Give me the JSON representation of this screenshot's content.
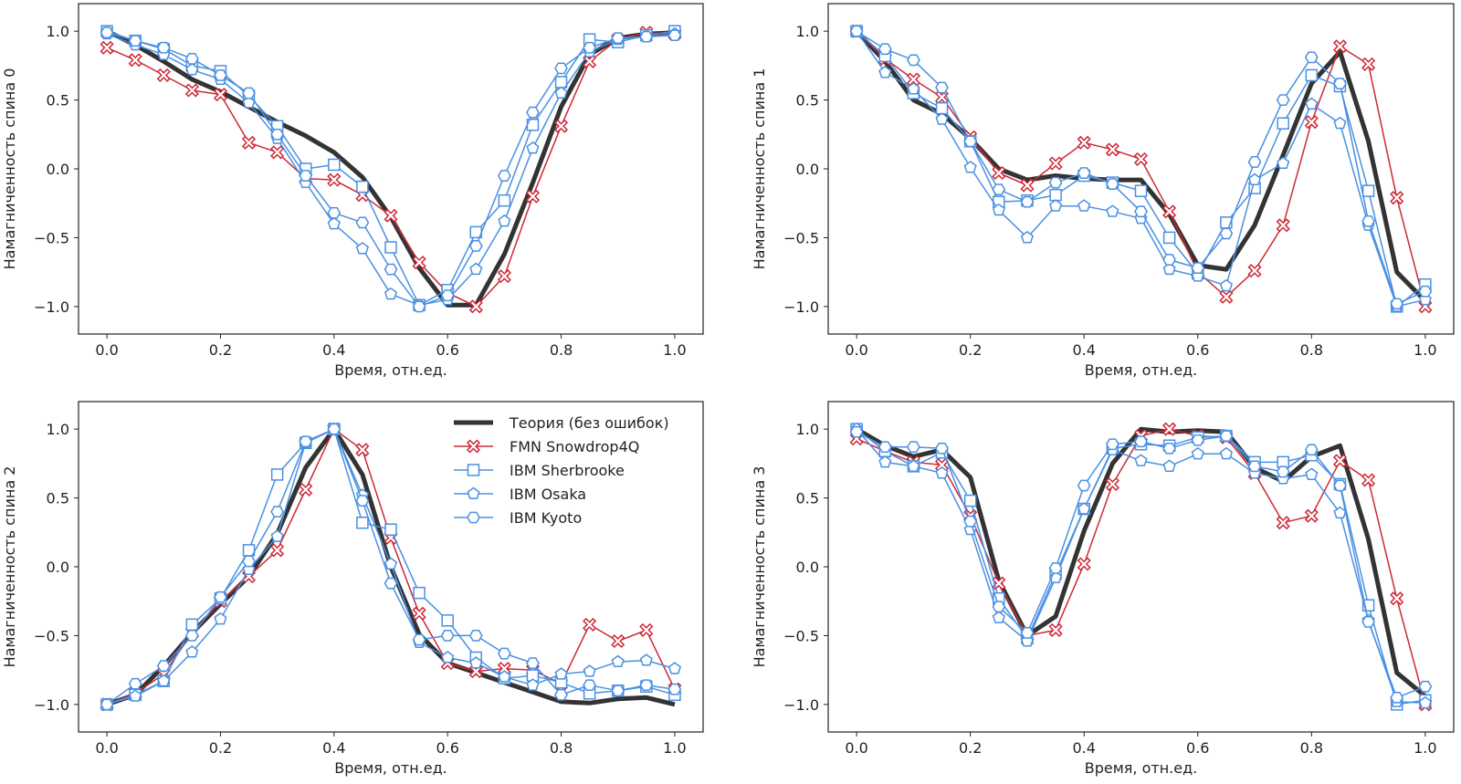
{
  "colors": {
    "theory": "#333333",
    "fmn": "#cc2936",
    "ibm": "#4a90e2"
  },
  "legend": {
    "entries": [
      "Теория (без ошибок)",
      "FMN Snowdrop4Q",
      "IBM Sherbrooke",
      "IBM Osaka",
      "IBM Kyoto"
    ]
  },
  "chart_data": [
    {
      "type": "line",
      "xlabel": "Время, отн.ед.",
      "ylabel": "Намагниченность спина 0",
      "xlim": [
        -0.05,
        1.05
      ],
      "ylim": [
        -1.2,
        1.2
      ],
      "xticks": [
        "0.0",
        "0.2",
        "0.4",
        "0.6",
        "0.8",
        "1.0"
      ],
      "yticks": [
        "−1.0",
        "−0.5",
        "0.0",
        "0.5",
        "1.0"
      ],
      "grid": false,
      "x": [
        0.0,
        0.05,
        0.1,
        0.15,
        0.2,
        0.25,
        0.3,
        0.35,
        0.4,
        0.45,
        0.5,
        0.55,
        0.6,
        0.65,
        0.7,
        0.75,
        0.8,
        0.85,
        0.9,
        0.95,
        1.0
      ],
      "series": [
        {
          "name": "Теория (без ошибок)",
          "values": [
            1.0,
            0.9,
            0.78,
            0.65,
            0.56,
            0.45,
            0.34,
            0.24,
            0.12,
            -0.06,
            -0.35,
            -0.72,
            -0.99,
            -0.99,
            -0.62,
            -0.1,
            0.45,
            0.83,
            0.95,
            0.98,
            0.99
          ]
        },
        {
          "name": "FMN Snowdrop4Q",
          "values": [
            0.88,
            0.79,
            0.68,
            0.57,
            0.54,
            0.19,
            0.12,
            -0.07,
            -0.08,
            -0.19,
            -0.34,
            -0.68,
            -0.9,
            -1.0,
            -0.78,
            -0.2,
            0.31,
            0.78,
            0.94,
            0.99,
            0.98
          ]
        },
        {
          "name": "IBM Sherbrooke",
          "values": [
            1.0,
            0.93,
            0.87,
            0.75,
            0.71,
            0.53,
            0.31,
            0.0,
            0.03,
            -0.13,
            -0.57,
            -0.99,
            -0.88,
            -0.46,
            -0.23,
            0.32,
            0.63,
            0.94,
            0.92,
            0.97,
            1.0
          ]
        },
        {
          "name": "IBM Osaka",
          "values": [
            0.98,
            0.9,
            0.83,
            0.72,
            0.65,
            0.48,
            0.22,
            -0.1,
            -0.4,
            -0.58,
            -0.91,
            -0.99,
            -0.95,
            -0.73,
            -0.38,
            0.15,
            0.55,
            0.85,
            0.94,
            0.96,
            0.98
          ]
        },
        {
          "name": "IBM Kyoto",
          "values": [
            0.99,
            0.93,
            0.88,
            0.8,
            0.68,
            0.55,
            0.25,
            -0.05,
            -0.32,
            -0.39,
            -0.73,
            -1.0,
            -0.92,
            -0.56,
            -0.05,
            0.41,
            0.73,
            0.88,
            0.95,
            0.96,
            0.97
          ]
        }
      ]
    },
    {
      "type": "line",
      "xlabel": "Время, отн.ед.",
      "ylabel": "Намагниченность спина 1",
      "xlim": [
        -0.05,
        1.05
      ],
      "ylim": [
        -1.2,
        1.2
      ],
      "xticks": [
        "0.0",
        "0.2",
        "0.4",
        "0.6",
        "0.8",
        "1.0"
      ],
      "yticks": [
        "−1.0",
        "−0.5",
        "0.0",
        "0.5",
        "1.0"
      ],
      "grid": false,
      "x": [
        0.0,
        0.05,
        0.1,
        0.15,
        0.2,
        0.25,
        0.3,
        0.35,
        0.4,
        0.45,
        0.5,
        0.55,
        0.6,
        0.65,
        0.7,
        0.75,
        0.8,
        0.85,
        0.9,
        0.95,
        1.0
      ],
      "series": [
        {
          "name": "Теория (без ошибок)",
          "values": [
            1.0,
            0.78,
            0.5,
            0.4,
            0.22,
            0.0,
            -0.08,
            -0.05,
            -0.07,
            -0.08,
            -0.08,
            -0.33,
            -0.7,
            -0.73,
            -0.41,
            0.1,
            0.62,
            0.85,
            0.2,
            -0.75,
            -0.96
          ]
        },
        {
          "name": "FMN Snowdrop4Q",
          "values": [
            1.0,
            0.8,
            0.65,
            0.52,
            0.23,
            -0.03,
            -0.12,
            0.04,
            0.19,
            0.14,
            0.07,
            -0.31,
            -0.75,
            -0.93,
            -0.74,
            -0.41,
            0.34,
            0.89,
            0.76,
            -0.21,
            -1.0
          ]
        },
        {
          "name": "IBM Sherbrooke",
          "values": [
            1.0,
            0.82,
            0.55,
            0.44,
            0.2,
            -0.24,
            -0.23,
            -0.19,
            -0.05,
            -0.1,
            -0.16,
            -0.5,
            -0.76,
            -0.39,
            -0.14,
            0.33,
            0.68,
            0.6,
            -0.16,
            -1.0,
            -0.84
          ]
        },
        {
          "name": "IBM Osaka",
          "values": [
            1.0,
            0.7,
            0.58,
            0.36,
            0.01,
            -0.3,
            -0.5,
            -0.27,
            -0.27,
            -0.31,
            -0.36,
            -0.73,
            -0.78,
            -0.85,
            -0.08,
            0.04,
            0.47,
            0.33,
            -0.41,
            -1.0,
            -0.95
          ]
        },
        {
          "name": "IBM Kyoto",
          "values": [
            1.0,
            0.87,
            0.79,
            0.59,
            0.2,
            -0.15,
            -0.24,
            -0.1,
            -0.03,
            -0.11,
            -0.31,
            -0.66,
            -0.72,
            -0.47,
            0.05,
            0.5,
            0.81,
            0.62,
            -0.38,
            -0.98,
            -0.89
          ]
        }
      ]
    },
    {
      "type": "line",
      "xlabel": "Время, отн.ед.",
      "ylabel": "Намагниченность спина 2",
      "xlim": [
        -0.05,
        1.05
      ],
      "ylim": [
        -1.2,
        1.2
      ],
      "xticks": [
        "0.0",
        "0.2",
        "0.4",
        "0.6",
        "0.8",
        "1.0"
      ],
      "yticks": [
        "−1.0",
        "−0.5",
        "0.0",
        "0.5",
        "1.0"
      ],
      "grid": false,
      "legend": "top-right",
      "x": [
        0.0,
        0.05,
        0.1,
        0.15,
        0.2,
        0.25,
        0.3,
        0.35,
        0.4,
        0.45,
        0.5,
        0.55,
        0.6,
        0.65,
        0.7,
        0.75,
        0.8,
        0.85,
        0.9,
        0.95,
        1.0
      ],
      "series": [
        {
          "name": "Теория (без ошибок)",
          "values": [
            -1.0,
            -0.93,
            -0.72,
            -0.48,
            -0.27,
            -0.07,
            0.24,
            0.72,
            1.0,
            0.67,
            0.0,
            -0.49,
            -0.7,
            -0.77,
            -0.84,
            -0.91,
            -0.98,
            -0.99,
            -0.96,
            -0.95,
            -1.0
          ]
        },
        {
          "name": "FMN Snowdrop4Q",
          "values": [
            -1.0,
            -0.92,
            -0.78,
            -0.48,
            -0.25,
            -0.07,
            0.12,
            0.56,
            1.0,
            0.85,
            0.21,
            -0.34,
            -0.7,
            -0.76,
            -0.74,
            -0.75,
            -0.85,
            -0.42,
            -0.54,
            -0.46,
            -0.89
          ]
        },
        {
          "name": "IBM Sherbrooke",
          "values": [
            -1.0,
            -0.93,
            -0.83,
            -0.42,
            -0.23,
            0.12,
            0.67,
            0.9,
            1.0,
            0.32,
            0.27,
            -0.19,
            -0.39,
            -0.66,
            -0.81,
            -0.79,
            -0.84,
            -0.92,
            -0.9,
            -0.87,
            -0.93
          ]
        },
        {
          "name": "IBM Osaka",
          "values": [
            -1.0,
            -0.94,
            -0.83,
            -0.62,
            -0.38,
            -0.02,
            0.22,
            0.9,
            1.0,
            0.52,
            0.02,
            -0.55,
            -0.66,
            -0.7,
            -0.8,
            -0.86,
            -0.78,
            -0.76,
            -0.69,
            -0.68,
            -0.74
          ]
        },
        {
          "name": "IBM Kyoto",
          "values": [
            -1.0,
            -0.85,
            -0.72,
            -0.5,
            -0.22,
            0.04,
            0.4,
            0.91,
            1.0,
            0.48,
            -0.12,
            -0.53,
            -0.5,
            -0.5,
            -0.63,
            -0.7,
            -0.93,
            -0.86,
            -0.9,
            -0.86,
            -0.89
          ]
        }
      ]
    },
    {
      "type": "line",
      "xlabel": "Время, отн.ед.",
      "ylabel": "Намагниченность спина 3",
      "xlim": [
        -0.05,
        1.05
      ],
      "ylim": [
        -1.2,
        1.2
      ],
      "xticks": [
        "0.0",
        "0.2",
        "0.4",
        "0.6",
        "0.8",
        "1.0"
      ],
      "yticks": [
        "−1.0",
        "−0.5",
        "0.0",
        "0.5",
        "1.0"
      ],
      "grid": false,
      "x": [
        0.0,
        0.05,
        0.1,
        0.15,
        0.2,
        0.25,
        0.3,
        0.35,
        0.4,
        0.45,
        0.5,
        0.55,
        0.6,
        0.65,
        0.7,
        0.75,
        0.8,
        0.85,
        0.9,
        0.95,
        1.0
      ],
      "series": [
        {
          "name": "Теория (без ошибок)",
          "values": [
            1.0,
            0.88,
            0.8,
            0.85,
            0.65,
            -0.1,
            -0.5,
            -0.36,
            0.26,
            0.75,
            1.0,
            0.98,
            0.99,
            0.98,
            0.72,
            0.62,
            0.8,
            0.88,
            0.2,
            -0.77,
            -0.94
          ]
        },
        {
          "name": "FMN Snowdrop4Q",
          "values": [
            0.93,
            0.84,
            0.76,
            0.74,
            0.37,
            -0.12,
            -0.5,
            -0.46,
            0.02,
            0.6,
            0.95,
            1.0,
            0.95,
            0.94,
            0.68,
            0.32,
            0.37,
            0.77,
            0.63,
            -0.23,
            -1.0
          ]
        },
        {
          "name": "IBM Sherbrooke",
          "values": [
            1.0,
            0.84,
            0.73,
            0.83,
            0.48,
            -0.23,
            -0.52,
            -0.05,
            0.42,
            0.86,
            0.89,
            0.88,
            0.94,
            0.95,
            0.76,
            0.76,
            0.81,
            0.6,
            -0.28,
            -1.0,
            -0.97
          ]
        },
        {
          "name": "IBM Osaka",
          "values": [
            1.0,
            0.76,
            0.73,
            0.68,
            0.27,
            -0.37,
            -0.54,
            -0.08,
            0.42,
            0.85,
            0.77,
            0.73,
            0.82,
            0.82,
            0.68,
            0.64,
            0.67,
            0.39,
            -0.39,
            -0.98,
            -0.99
          ]
        },
        {
          "name": "IBM Kyoto",
          "values": [
            0.98,
            0.87,
            0.87,
            0.86,
            0.33,
            -0.29,
            -0.48,
            -0.01,
            0.59,
            0.89,
            0.91,
            0.86,
            0.92,
            0.95,
            0.73,
            0.69,
            0.85,
            0.59,
            -0.4,
            -0.95,
            -0.87
          ]
        }
      ]
    }
  ]
}
